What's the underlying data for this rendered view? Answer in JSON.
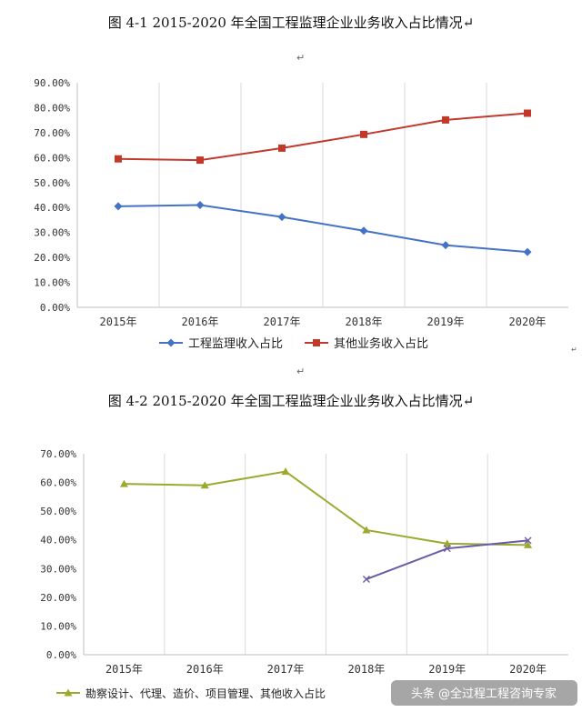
{
  "page": {
    "mark_top": "↵",
    "mark_mid": "↵",
    "mark_small": "↵",
    "watermark_text": "头条 @全过程工程咨询专家"
  },
  "chart_data": [
    {
      "type": "line",
      "title": "图 4-1   2015-2020 年全国工程监理企业业务收入占比情况↵",
      "categories": [
        "2015年",
        "2016年",
        "2017年",
        "2018年",
        "2019年",
        "2020年"
      ],
      "yticks": [
        "0.00%",
        "10.00%",
        "20.00%",
        "30.00%",
        "40.00%",
        "50.00%",
        "60.00%",
        "70.00%",
        "80.00%",
        "90.00%"
      ],
      "ylim": [
        0,
        90
      ],
      "grid": "vertical",
      "legend": "bottom",
      "series": [
        {
          "name": "工程监理收入占比",
          "color": "#4472C4",
          "marker": "diamond",
          "values": [
            40.5,
            41.0,
            36.2,
            30.7,
            24.9,
            22.2
          ]
        },
        {
          "name": "其他业务收入占比",
          "color": "#C0392B",
          "marker": "square",
          "values": [
            59.5,
            59.0,
            63.8,
            69.3,
            75.1,
            77.8
          ]
        }
      ]
    },
    {
      "type": "line",
      "title": "图 4-2   2015-2020 年全国工程监理企业业务收入占比情况↵",
      "categories": [
        "2015年",
        "2016年",
        "2017年",
        "2018年",
        "2019年",
        "2020年"
      ],
      "yticks": [
        "0.00%",
        "10.00%",
        "20.00%",
        "30.00%",
        "40.00%",
        "50.00%",
        "60.00%",
        "70.00%"
      ],
      "ylim": [
        0,
        70
      ],
      "grid": "vertical",
      "legend": "bottom",
      "series": [
        {
          "name": "勘察设计、代理、造价、项目管理、其他收入占比",
          "color": "#9BAA2E",
          "marker": "triangle",
          "values": [
            59.5,
            59.0,
            63.8,
            43.4,
            38.7,
            38.2
          ]
        },
        {
          "name": "",
          "color": "#6A5AA8",
          "marker": "x",
          "values": [
            null,
            null,
            null,
            26.3,
            37.0,
            39.8
          ]
        }
      ]
    }
  ]
}
